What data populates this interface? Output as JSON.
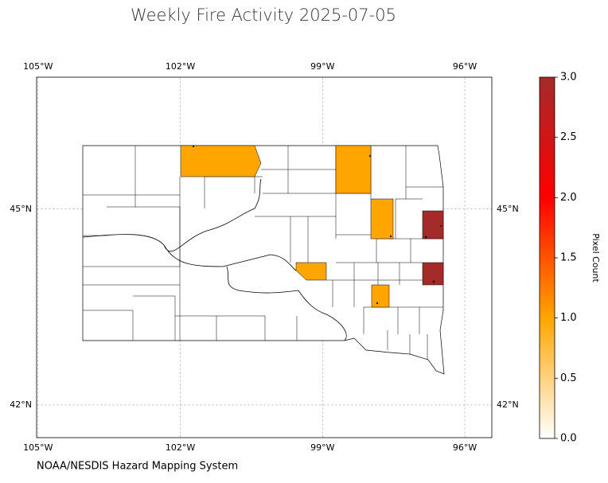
{
  "title": "Weekly Fire Activity 2025-07-05",
  "map": {
    "xlim": [
      -105.03,
      -95.43
    ],
    "ylim": [
      41.5,
      47.02
    ],
    "xticks": [
      {
        "value": -105,
        "label": "105°W"
      },
      {
        "value": -102,
        "label": "102°W"
      },
      {
        "value": -99,
        "label": "99°W"
      },
      {
        "value": -96,
        "label": "96°W"
      }
    ],
    "yticks": [
      {
        "value": 42,
        "label": "42°N"
      },
      {
        "value": 45,
        "label": "45°N"
      }
    ],
    "grid": true
  },
  "fires": {
    "values": [
      1,
      1,
      1,
      1,
      1,
      3,
      3
    ]
  },
  "colorbar": {
    "label": "Pixel Count",
    "lim": [
      0,
      3
    ],
    "colors": [
      "#ffffff",
      "#ffa500",
      "#ff0000",
      "#a52a2a"
    ],
    "ticks": [
      {
        "value": 0,
        "label": "0.0"
      },
      0.5,
      {
        "value": 1,
        "label": "1.0"
      },
      1.5,
      {
        "value": 2,
        "label": "2.0"
      },
      2.5,
      {
        "value": 3,
        "label": "3.0"
      }
    ]
  },
  "source": "NOAA/NESDIS Hazard Mapping System"
}
